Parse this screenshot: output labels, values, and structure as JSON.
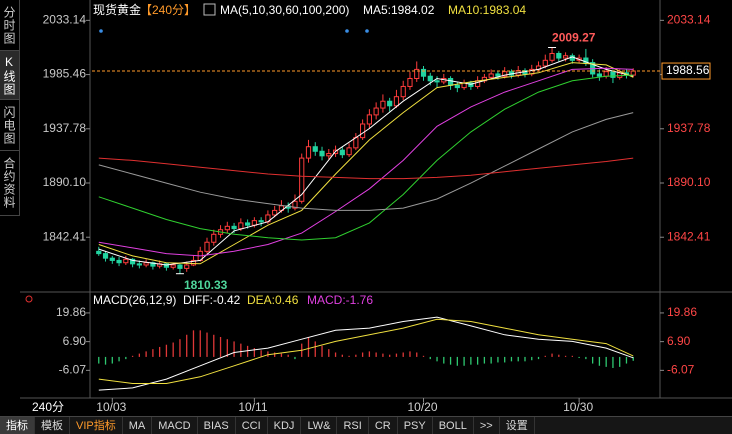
{
  "sidebar": [
    "分时图",
    "K线图",
    "闪电图",
    "合约资料"
  ],
  "period_label": "240分",
  "tabs": [
    "指标",
    "模板",
    "VIP指标",
    "MA",
    "MACD",
    "BIAS",
    "CCI",
    "KDJ",
    "LW&",
    "RSI",
    "CR",
    "PSY",
    "BOLL",
    ">>",
    "设置"
  ],
  "chart_data": [
    {
      "type": "candlestick",
      "title": "现货黄金",
      "subtitle": "【240分】",
      "indicator": "MA(5,10,30,60,100,200)",
      "xlim": [
        -1,
        80
      ],
      "ylim": [
        1796,
        2044
      ],
      "yticks": [
        2033.14,
        1985.46,
        1937.78,
        {
          "value": 1890.1,
          "label": "1890.10"
        },
        1842.41
      ],
      "xticks": [
        {
          "value": 2,
          "label": "10/03"
        },
        {
          "value": 23,
          "label": "10/11"
        },
        {
          "value": 48,
          "label": "10/20"
        },
        {
          "value": 71,
          "label": "10/30"
        }
      ],
      "up_color": "#ff3c3c",
      "down_color": "#22d3a0",
      "ohlc": [
        [
          1830,
          1834,
          1826,
          1828
        ],
        [
          1828,
          1830,
          1821,
          1824
        ],
        [
          1824,
          1826,
          1819,
          1822
        ],
        [
          1822,
          1825,
          1817,
          1820
        ],
        [
          1820,
          1826,
          1818,
          1823
        ],
        [
          1823,
          1824,
          1816,
          1819
        ],
        [
          1819,
          1822,
          1815,
          1818
        ],
        [
          1818,
          1823,
          1816,
          1820
        ],
        [
          1820,
          1821,
          1814,
          1817
        ],
        [
          1817,
          1822,
          1815,
          1819
        ],
        [
          1819,
          1820,
          1813,
          1816
        ],
        [
          1816,
          1820,
          1814,
          1818
        ],
        [
          1818,
          1819,
          1810.33,
          1815
        ],
        [
          1815,
          1821,
          1812,
          1818
        ],
        [
          1818,
          1826,
          1817,
          1822
        ],
        [
          1822,
          1834,
          1821,
          1830
        ],
        [
          1830,
          1842,
          1828,
          1838
        ],
        [
          1838,
          1849,
          1835,
          1845
        ],
        [
          1845,
          1853,
          1842,
          1849
        ],
        [
          1849,
          1856,
          1846,
          1852
        ],
        [
          1852,
          1855,
          1846,
          1850
        ],
        [
          1850,
          1859,
          1848,
          1855
        ],
        [
          1855,
          1858,
          1850,
          1853
        ],
        [
          1853,
          1860,
          1851,
          1857
        ],
        [
          1857,
          1860,
          1852,
          1856
        ],
        [
          1856,
          1866,
          1854,
          1862
        ],
        [
          1862,
          1870,
          1860,
          1866
        ],
        [
          1866,
          1875,
          1864,
          1870
        ],
        [
          1870,
          1873,
          1864,
          1868
        ],
        [
          1868,
          1880,
          1866,
          1874
        ],
        [
          1874,
          1916,
          1872,
          1912
        ],
        [
          1912,
          1928,
          1908,
          1922
        ],
        [
          1922,
          1926,
          1914,
          1918
        ],
        [
          1918,
          1922,
          1910,
          1914
        ],
        [
          1914,
          1920,
          1911,
          1916
        ],
        [
          1916,
          1923,
          1913,
          1919
        ],
        [
          1919,
          1922,
          1912,
          1915
        ],
        [
          1915,
          1925,
          1913,
          1921
        ],
        [
          1921,
          1934,
          1919,
          1930
        ],
        [
          1930,
          1946,
          1928,
          1942
        ],
        [
          1942,
          1955,
          1938,
          1950
        ],
        [
          1950,
          1961,
          1946,
          1956
        ],
        [
          1956,
          1968,
          1952,
          1962
        ],
        [
          1962,
          1965,
          1953,
          1958
        ],
        [
          1958,
          1972,
          1956,
          1966
        ],
        [
          1966,
          1980,
          1963,
          1975
        ],
        [
          1975,
          1988,
          1972,
          1982
        ],
        [
          1982,
          1997,
          1979,
          1990
        ],
        [
          1990,
          1993,
          1980,
          1984
        ],
        [
          1984,
          1987,
          1976,
          1980
        ],
        [
          1980,
          1984,
          1974,
          1979
        ],
        [
          1979,
          1986,
          1977,
          1982
        ],
        [
          1982,
          1984,
          1972,
          1976
        ],
        [
          1976,
          1979,
          1970,
          1974
        ],
        [
          1974,
          1981,
          1972,
          1978
        ],
        [
          1978,
          1980,
          1972,
          1975
        ],
        [
          1975,
          1984,
          1973,
          1980
        ],
        [
          1980,
          1986,
          1978,
          1983
        ],
        [
          1983,
          1990,
          1981,
          1986
        ],
        [
          1986,
          1989,
          1981,
          1984
        ],
        [
          1984,
          1992,
          1982,
          1988
        ],
        [
          1988,
          1990,
          1982,
          1985
        ],
        [
          1985,
          1993,
          1983,
          1989
        ],
        [
          1989,
          1991,
          1983,
          1986
        ],
        [
          1986,
          1994,
          1984,
          1990
        ],
        [
          1990,
          1997,
          1988,
          1993
        ],
        [
          1993,
          2003,
          1991,
          1998
        ],
        [
          1998,
          2009.27,
          1996,
          2004
        ],
        [
          2004,
          2006,
          1997,
          2000
        ],
        [
          2000,
          2005,
          1997,
          2002
        ],
        [
          2002,
          2004,
          1995,
          1998
        ],
        [
          1998,
          2003,
          1996,
          2000
        ],
        [
          2000,
          2008,
          1993,
          1996
        ],
        [
          1996,
          1999,
          1983,
          1986
        ],
        [
          1986,
          1990,
          1980,
          1984
        ],
        [
          1984,
          1992,
          1982,
          1988
        ],
        [
          1988,
          1990,
          1978,
          1983
        ],
        [
          1983,
          1990,
          1981,
          1987
        ],
        [
          1987,
          1990,
          1982,
          1985
        ],
        [
          1985,
          1991,
          1983,
          1988.56
        ]
      ],
      "annotations": [
        {
          "x": 67,
          "value": 2009.27,
          "color": "#ff5a5a"
        },
        {
          "x": 12,
          "value": 1810.33,
          "color": "#4fd69c"
        }
      ],
      "ma_x": [
        0,
        5,
        10,
        15,
        20,
        25,
        30,
        35,
        40,
        45,
        50,
        55,
        60,
        65,
        70,
        75,
        79
      ],
      "series": [
        {
          "name": "MA5:1984.02",
          "color": "#ffffff",
          "values": [
            1832,
            1822,
            1818,
            1822,
            1848,
            1856,
            1880,
            1918,
            1938,
            1962,
            1982,
            1977,
            1985,
            1990,
            2001,
            1990,
            1984.02
          ]
        },
        {
          "name": "MA10:1983.04",
          "color": "#f0e040",
          "values": [
            1836,
            1826,
            1820,
            1819,
            1836,
            1853,
            1866,
            1898,
            1928,
            1952,
            1974,
            1979,
            1983,
            1987,
            1996,
            1994,
            1983.04
          ]
        },
        {
          "color": "#e040e0",
          "values": [
            1838,
            1833,
            1828,
            1826,
            1830,
            1836,
            1846,
            1865,
            1885,
            1910,
            1940,
            1957,
            1970,
            1980,
            1990,
            1991,
            1990
          ]
        },
        {
          "color": "#30d030",
          "values": [
            1878,
            1868,
            1858,
            1850,
            1845,
            1842,
            1840,
            1842,
            1855,
            1880,
            1910,
            1935,
            1955,
            1970,
            1980,
            1984,
            1985
          ]
        },
        {
          "color": "#9a9a9a",
          "values": [
            1906,
            1898,
            1890,
            1882,
            1876,
            1872,
            1868,
            1866,
            1866,
            1868,
            1876,
            1890,
            1905,
            1920,
            1935,
            1946,
            1952
          ]
        },
        {
          "color": "#e03030",
          "values": [
            1912,
            1910,
            1907,
            1904,
            1901,
            1898,
            1896,
            1895,
            1894,
            1894,
            1895,
            1897,
            1900,
            1903,
            1906,
            1909,
            1912
          ]
        }
      ]
    },
    {
      "type": "macd",
      "title": "MACD(26,12,9)",
      "xlim": [
        -1,
        80
      ],
      "ylim": [
        -17.2,
        25.7
      ],
      "yticks": [
        19.86,
        {
          "value": 6.9,
          "label": "6.90"
        },
        -6.07
      ],
      "up_color": "#e03838",
      "down_color": "#2ec870",
      "histogram_name": "MACD:-1.76",
      "histogram_color": "#e040e0",
      "histogram": [
        -3,
        -3.5,
        -3,
        -2,
        -1,
        0.5,
        1.5,
        2.5,
        3.5,
        4.5,
        5.5,
        6.5,
        8,
        10,
        12,
        12,
        11,
        10,
        9,
        8,
        7,
        6,
        5,
        4,
        3,
        2.5,
        2,
        1.5,
        1,
        -1,
        6,
        9,
        7,
        5,
        3.5,
        2,
        1,
        0.5,
        1,
        2,
        2.5,
        2,
        1.5,
        1,
        1.5,
        2,
        2.5,
        2,
        0.5,
        -1,
        -2,
        -3,
        -3.5,
        -4,
        -4,
        -3.5,
        -3.5,
        -3,
        -3,
        -2.5,
        -2.5,
        -2,
        -2,
        -2,
        -1.5,
        -1,
        0.5,
        1.5,
        1,
        0.5,
        0.5,
        -0.5,
        -1,
        -3,
        -4,
        -4.5,
        -5,
        -4.5,
        -3,
        -1.76
      ],
      "line_x": [
        0,
        5,
        10,
        15,
        20,
        25,
        30,
        35,
        40,
        45,
        50,
        55,
        60,
        65,
        70,
        75,
        79
      ],
      "series": [
        {
          "name": "DIFF:-0.42",
          "color": "#ffffff",
          "values": [
            -15,
            -14,
            -10,
            -4,
            2,
            4,
            8,
            12,
            13,
            16,
            18,
            14,
            10,
            8,
            7,
            4,
            -0.42
          ]
        },
        {
          "name": "DEA:0.46",
          "color": "#f0e040",
          "values": [
            -10,
            -12,
            -12,
            -9,
            -4,
            1,
            3,
            7,
            10,
            13,
            17,
            16,
            13,
            10,
            8,
            6,
            0.46
          ]
        }
      ]
    }
  ]
}
